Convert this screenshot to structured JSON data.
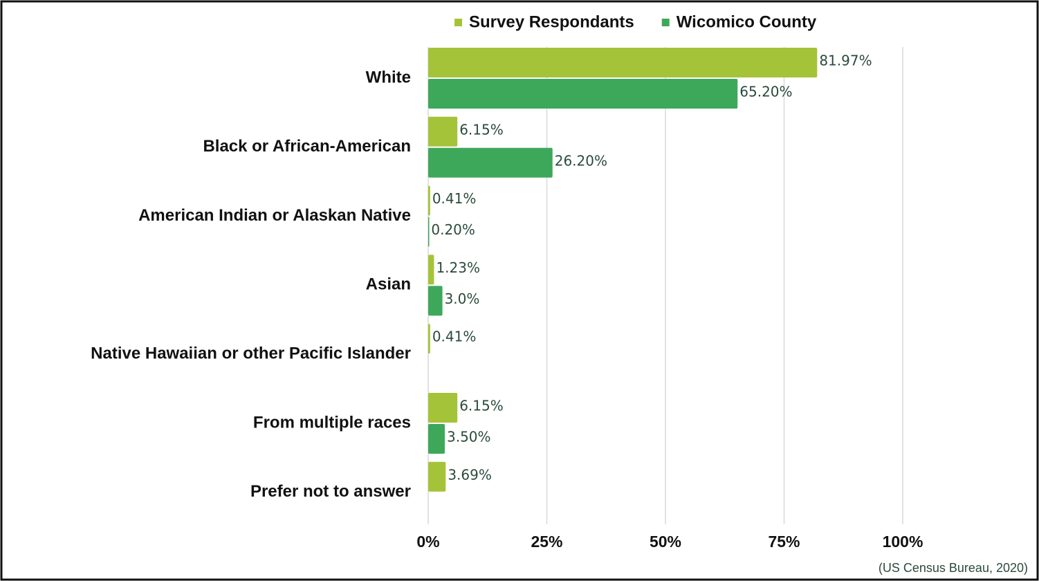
{
  "chart_data": {
    "type": "barh",
    "categories": [
      "White",
      "Black or African-American",
      "American Indian or Alaskan Native",
      "Asian",
      "Native Hawaiian or other Pacific Islander",
      "From multiple races",
      "Prefer not to answer"
    ],
    "series": [
      {
        "name": "Survey Respondants",
        "color": "#a5c339",
        "values": [
          81.97,
          6.15,
          0.41,
          1.23,
          0.41,
          6.15,
          3.69
        ],
        "value_labels": [
          "81.97%",
          "6.15%",
          "0.41%",
          "1.23%",
          "0.41%",
          "6.15%",
          "3.69%"
        ]
      },
      {
        "name": "Wicomico County",
        "color": "#3ea85a",
        "values": [
          65.2,
          26.2,
          0.2,
          3.0,
          null,
          3.5,
          null
        ],
        "value_labels": [
          "65.20%",
          "26.20%",
          "0.20%",
          "3.0%",
          null,
          "3.50%",
          null
        ]
      }
    ],
    "xlim": [
      0,
      100
    ],
    "xticks": [
      {
        "value": 0,
        "label": "0%"
      },
      {
        "value": 25,
        "label": "25%"
      },
      {
        "value": 50,
        "label": "50%"
      },
      {
        "value": 75,
        "label": "75%"
      },
      {
        "value": 100,
        "label": "100%"
      }
    ],
    "grid": true,
    "legend": "top",
    "source": "(US Census Bureau, 2020)"
  }
}
